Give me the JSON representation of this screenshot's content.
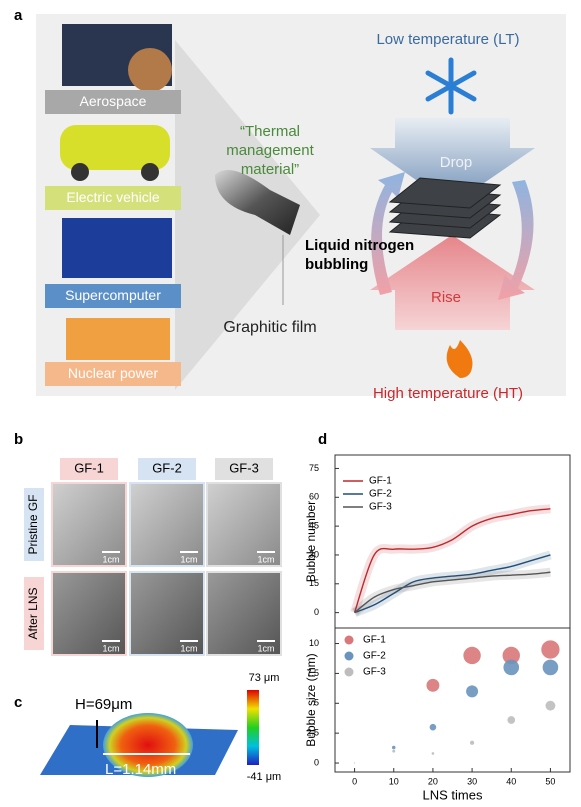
{
  "panels": {
    "a": {
      "label": "a",
      "applications": [
        "Aerospace",
        "Electric vehicle",
        "Supercomputer",
        "Nuclear power"
      ],
      "material": "“Thermal management material”",
      "film": "Graphitic film",
      "low": "Low temperature (LT)",
      "drop": "Drop",
      "process": "Liquid nitrogen bubbling",
      "rise": "Rise",
      "high": "High temperature (HT)"
    },
    "b": {
      "label": "b",
      "columns": [
        "GF-1",
        "GF-2",
        "GF-3"
      ],
      "rows": [
        "Pristine GF",
        "After LNS"
      ],
      "scale_bar": "1cm"
    },
    "c": {
      "label": "c",
      "height": "H=69μm",
      "length": "L=1.14mm",
      "colorbar_max": "73 μm",
      "colorbar_min": "-41 μm"
    },
    "d": {
      "label": "d"
    }
  },
  "chart_data": [
    {
      "type": "line",
      "ylabel": "Bubble number",
      "x": [
        0,
        5,
        10,
        15,
        20,
        25,
        30,
        35,
        40,
        45,
        50
      ],
      "series": [
        {
          "name": "GF-1",
          "color": "#c0282c",
          "values": [
            0,
            30,
            33,
            33,
            34,
            38,
            45,
            49,
            51,
            53,
            54
          ]
        },
        {
          "name": "GF-2",
          "color": "#1f4e79",
          "values": [
            0,
            4,
            10,
            16,
            18,
            19,
            20,
            22,
            24,
            27,
            30
          ]
        },
        {
          "name": "GF-3",
          "color": "#555555",
          "values": [
            0,
            8,
            12,
            14,
            16,
            17,
            18,
            19,
            19.5,
            20,
            21
          ]
        }
      ],
      "xlim": [
        -5,
        55
      ],
      "ylim": [
        -8,
        82
      ],
      "yticks": [
        0,
        15,
        30,
        45,
        60,
        75
      ]
    },
    {
      "type": "scatter",
      "ylabel": "Bubble size (mm)",
      "xlabel": "LNS times",
      "series": [
        {
          "name": "GF-1",
          "color": "#d9777a",
          "x": [
            20,
            30,
            40,
            50
          ],
          "values": [
            6.5,
            9,
            9,
            9.5
          ]
        },
        {
          "name": "GF-2",
          "color": "#6a93bd",
          "x": [
            10,
            20,
            30,
            40,
            50
          ],
          "values": [
            1.3,
            3,
            6,
            8,
            8
          ]
        },
        {
          "name": "GF-3",
          "color": "#bdbdbd",
          "x": [
            0,
            10,
            20,
            30,
            40,
            50
          ],
          "values": [
            0,
            1,
            0.8,
            1.7,
            3.6,
            4.8
          ]
        }
      ],
      "xlim": [
        -5,
        55
      ],
      "ylim": [
        -0.75,
        11.3
      ],
      "xticks": [
        0,
        10,
        20,
        30,
        40,
        50
      ],
      "yticks": [
        0,
        2.5,
        5,
        7.5,
        10
      ]
    }
  ]
}
